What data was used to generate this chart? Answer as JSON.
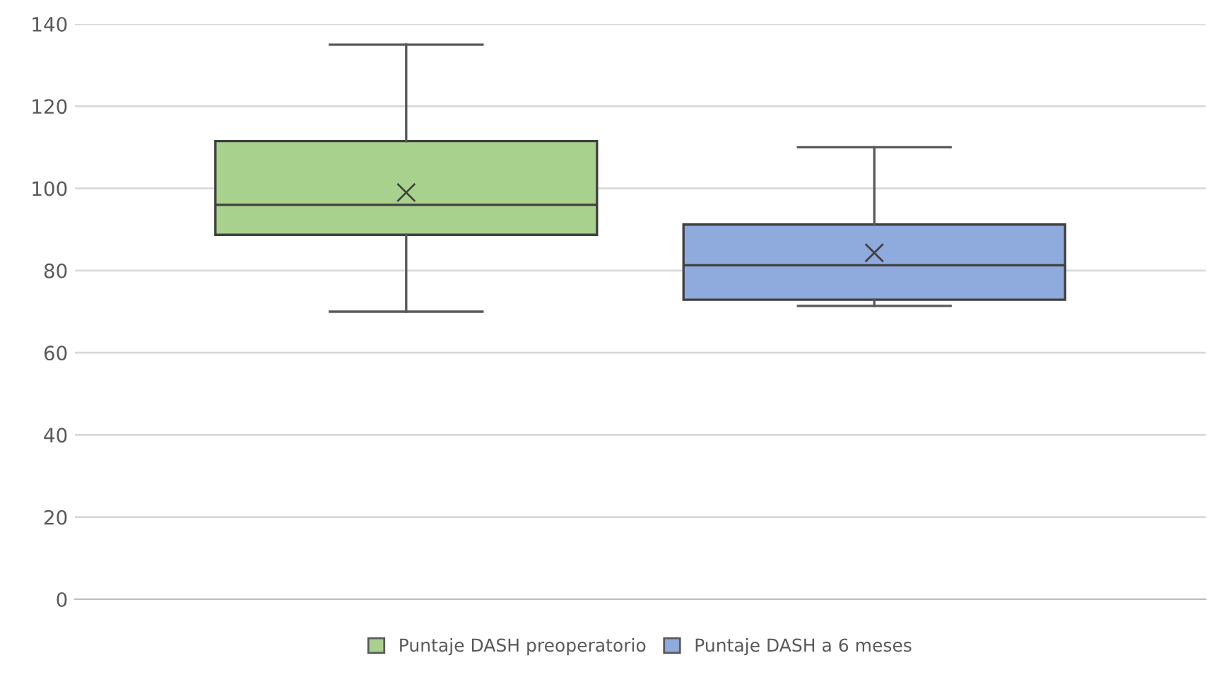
{
  "chart_data": {
    "type": "box",
    "categories": [
      null
    ],
    "series": [
      {
        "name": "Puntaje DASH preoperatorio",
        "color": "#a9d18e",
        "boxes": [
          {
            "low": 70,
            "q1": 88.7,
            "median": 96,
            "q3": 111.5,
            "high": 135,
            "mean": 99
          }
        ]
      },
      {
        "name": "Puntaje DASH a 6 meses",
        "color": "#8faadc",
        "boxes": [
          {
            "low": 71.4,
            "q1": 72.9,
            "median": 81.3,
            "q3": 91.2,
            "high": 110,
            "mean": 84.3
          }
        ]
      }
    ],
    "ylim": [
      0,
      140
    ],
    "yticks": [
      0,
      20,
      40,
      60,
      80,
      100,
      120,
      140
    ],
    "grid": "y",
    "legend": "bottom"
  }
}
